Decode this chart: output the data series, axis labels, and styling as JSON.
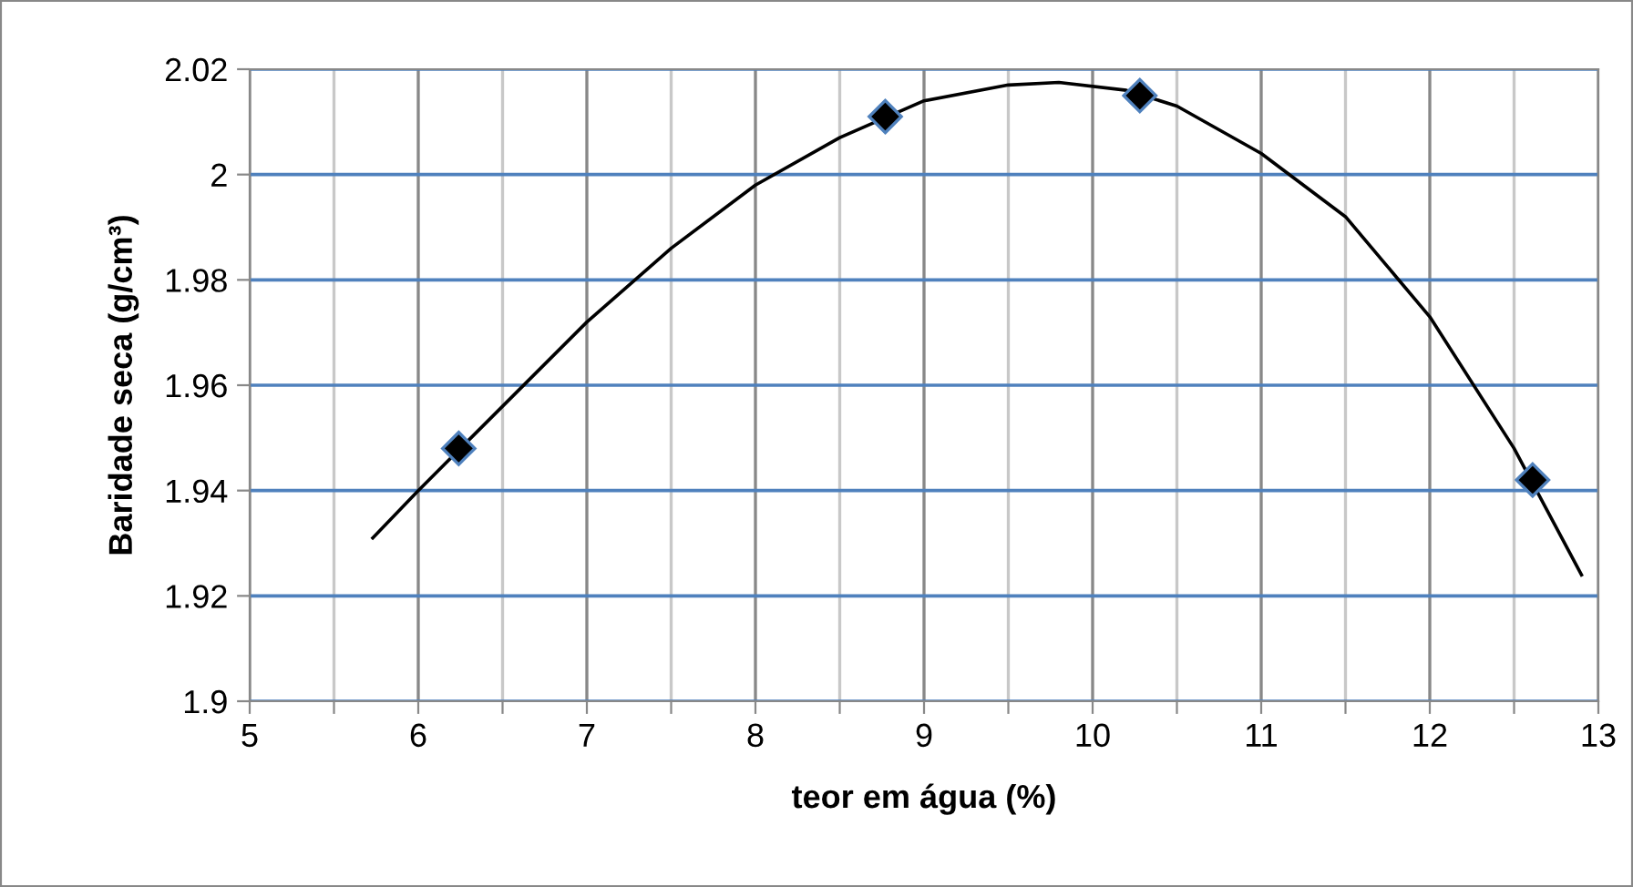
{
  "chart_data": {
    "type": "scatter",
    "xlabel": "teor em água (%)",
    "ylabel": "Baridade seca (g/cm³)",
    "series": [
      {
        "color": "#000000",
        "marker": "diamond",
        "x": [
          6.24,
          8.77,
          10.28,
          12.61
        ],
        "values": [
          1.948,
          2.011,
          2.015,
          1.942
        ]
      },
      {
        "type": "line",
        "color": "#000000",
        "marker": "none",
        "x": [
          5.73,
          6.0,
          6.5,
          7.0,
          7.5,
          8.0,
          8.5,
          9.0,
          9.5,
          9.8,
          10.2,
          10.5,
          11.0,
          11.5,
          12.0,
          12.5,
          12.9
        ],
        "values": [
          1.931,
          1.94,
          1.956,
          1.972,
          1.986,
          1.998,
          2.007,
          2.014,
          2.017,
          2.0175,
          2.016,
          2.013,
          2.004,
          1.992,
          1.973,
          1.948,
          1.924
        ]
      }
    ],
    "xlim": [
      5,
      13
    ],
    "xticks": [
      5,
      {
        "value": 5.5,
        "label": null
      },
      6,
      {
        "value": 6.5,
        "label": null
      },
      7,
      {
        "value": 7.5,
        "label": null
      },
      8,
      {
        "value": 8.5,
        "label": null
      },
      9,
      {
        "value": 9.5,
        "label": null
      },
      10,
      {
        "value": 10.5,
        "label": null
      },
      11,
      {
        "value": 11.5,
        "label": null
      },
      12,
      {
        "value": 12.5,
        "label": null
      },
      13
    ],
    "ylim": [
      1.9,
      2.02
    ],
    "yticks": [
      1.9,
      1.92,
      1.94,
      1.96,
      1.98,
      2,
      2.02
    ],
    "grid": true,
    "legend": false
  }
}
